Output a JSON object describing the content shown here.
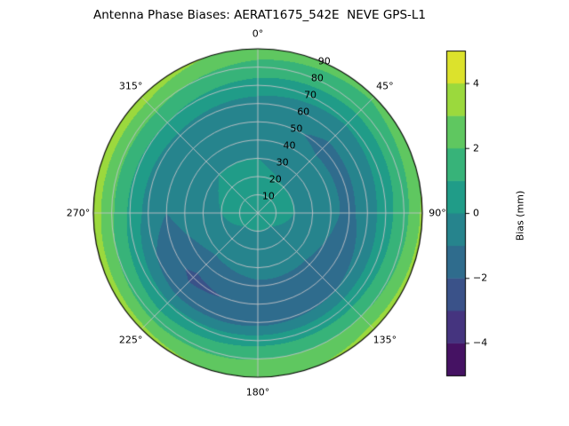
{
  "figure": {
    "title": "Antenna Phase Biases: AERAT1675_542E  NEVE GPS-L1"
  },
  "chart_data": {
    "type": "heatmap",
    "projection": "polar",
    "title": "Antenna Phase Biases: AERAT1675_542E  NEVE GPS-L1",
    "angular_axis": "azimuth, 0 at top, clockwise",
    "angular_tick_deg": [
      0,
      45,
      90,
      135,
      180,
      225,
      270,
      315
    ],
    "angular_tick_labels": [
      "0°",
      "45°",
      "90°",
      "135°",
      "180°",
      "225°",
      "270°",
      "315°"
    ],
    "radial_axis": "zenith angle (deg)",
    "radial_range": [
      0,
      90
    ],
    "radial_ticks_deg": [
      10,
      20,
      30,
      40,
      50,
      60,
      70,
      80,
      90
    ],
    "radial_tick_labels": [
      "10",
      "20",
      "30",
      "40",
      "50",
      "60",
      "70",
      "80",
      "90"
    ],
    "radial_label_azimuth_deg": 22.5,
    "colormap": "viridis",
    "contour_level_step_mm": 1,
    "colorbar": {
      "label": "Bias (mm)",
      "tick_values": [
        4,
        2,
        0,
        -2,
        -4
      ],
      "tick_labels": [
        "4",
        "2",
        "0",
        "−2",
        "−4"
      ],
      "vmin": -5,
      "vmax": 5
    },
    "azimuth_deg": [
      0,
      45,
      90,
      135,
      180,
      225,
      270,
      315
    ],
    "zenith_deg": [
      10,
      20,
      30,
      40,
      50,
      60,
      70,
      80,
      90
    ],
    "center_bias_mm": 0.2,
    "bias_mm": [
      [
        0.2,
        0.2,
        0.0,
        -0.4,
        -0.6,
        -0.4,
        0.6,
        1.6,
        2.6
      ],
      [
        0.2,
        0.0,
        -0.4,
        -0.8,
        -1.2,
        -0.8,
        0.2,
        1.4,
        2.2
      ],
      [
        0.2,
        0.0,
        -0.4,
        -0.8,
        -1.2,
        -0.6,
        0.6,
        1.6,
        3.2
      ],
      [
        0.0,
        -0.2,
        -0.6,
        -1.2,
        -1.6,
        -1.0,
        0.6,
        2.0,
        3.4
      ],
      [
        0.0,
        -0.2,
        -0.6,
        -1.2,
        -1.8,
        -1.4,
        0.6,
        2.0,
        2.6
      ],
      [
        0.0,
        -0.2,
        -0.8,
        -1.6,
        -2.2,
        -1.6,
        0.2,
        1.6,
        3.4
      ],
      [
        0.2,
        0.0,
        -0.4,
        -0.6,
        -1.0,
        -0.4,
        0.8,
        2.2,
        3.6
      ],
      [
        0.2,
        0.2,
        0.0,
        -0.4,
        -0.6,
        -0.2,
        1.0,
        2.2,
        3.6
      ]
    ]
  }
}
